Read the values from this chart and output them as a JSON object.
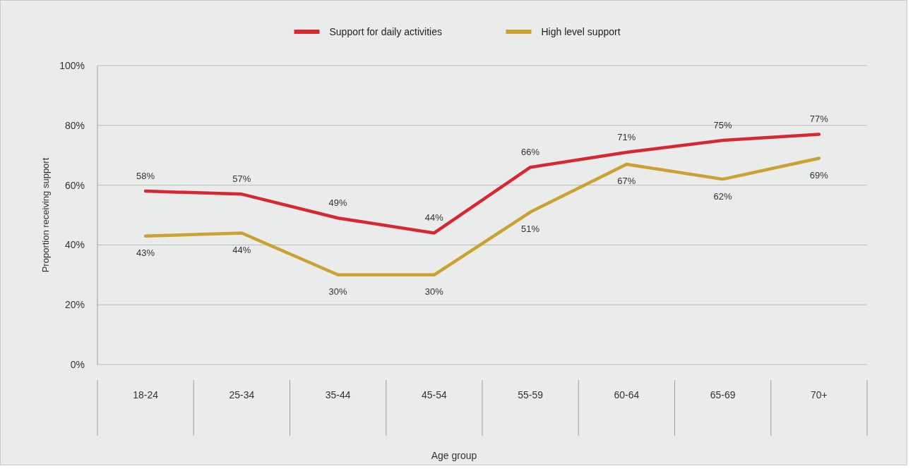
{
  "chart_data": {
    "type": "line",
    "xlabel": "Age group",
    "ylabel": "Proportion receiving support",
    "categories": [
      "18-24",
      "25-34",
      "35-44",
      "45-54",
      "55-59",
      "60-64",
      "65-69",
      "70+"
    ],
    "series": [
      {
        "name": "Support for daily activities",
        "color": "#d7282f",
        "values": [
          58,
          57,
          49,
          44,
          66,
          71,
          75,
          77
        ],
        "value_labels": [
          "58%",
          "57%",
          "49%",
          "44%",
          "66%",
          "71%",
          "75%",
          "77%"
        ]
      },
      {
        "name": "High level support",
        "color": "#c9a232",
        "values": [
          43,
          44,
          30,
          30,
          51,
          67,
          62,
          69
        ],
        "value_labels": [
          "43%",
          "44%",
          "30%",
          "30%",
          "51%",
          "67%",
          "62%",
          "69%"
        ]
      }
    ],
    "ylim": [
      0,
      100
    ],
    "yticks": [
      {
        "value": 0,
        "label": "0%"
      },
      {
        "value": 20,
        "label": "20%"
      },
      {
        "value": 40,
        "label": "40%"
      },
      {
        "value": 60,
        "label": "60%"
      },
      {
        "value": 80,
        "label": "80%"
      },
      {
        "value": 100,
        "label": "100%"
      }
    ],
    "grid": "y",
    "legend": "top",
    "marker": "none",
    "line_style": "solid"
  }
}
